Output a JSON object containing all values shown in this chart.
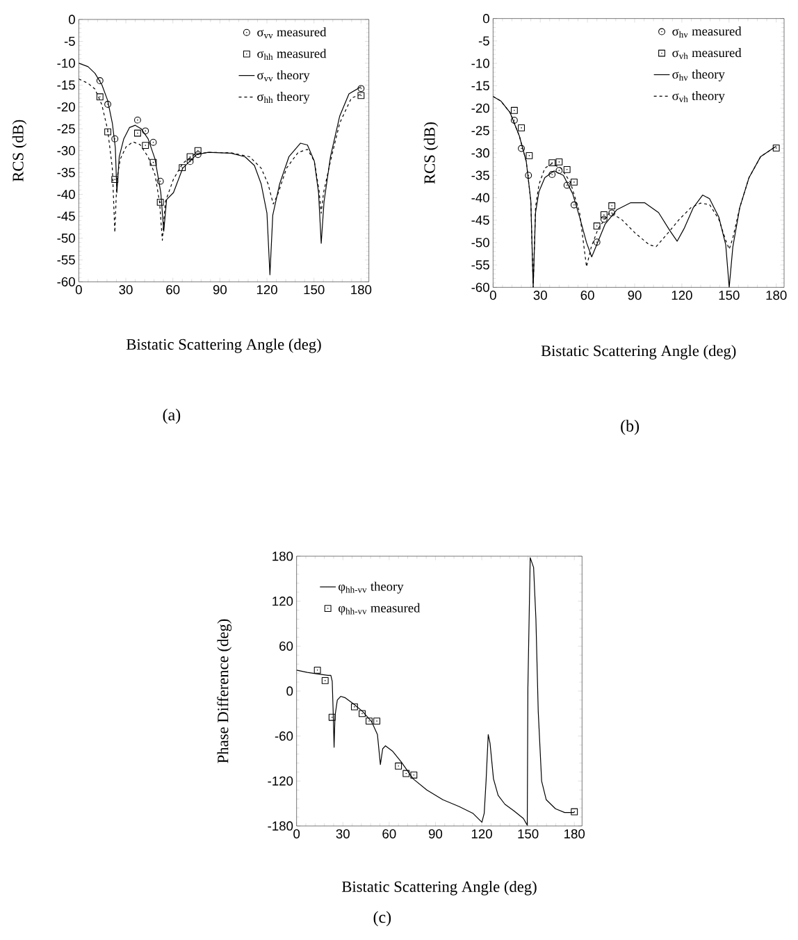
{
  "chart_data": [
    {
      "type": "line",
      "title": "(a)",
      "xlabel": "Bistatic Scattering Angle (deg)",
      "ylabel": "RCS  (dB)",
      "xlim": [
        0,
        185
      ],
      "ylim": [
        -60,
        0
      ],
      "xticks": [
        0,
        30,
        60,
        90,
        120,
        150,
        180
      ],
      "yticks": [
        0,
        -5,
        -10,
        -15,
        -20,
        -25,
        -30,
        -35,
        -40,
        -45,
        -50,
        -55,
        -60
      ],
      "legend": "top right",
      "series": [
        {
          "name": "σ$_{vv}$ measured",
          "type": "scatter",
          "marker": "circle",
          "color": "#000000",
          "x": [
            13.5,
            18.5,
            23,
            37.5,
            42.5,
            47.5,
            52,
            71,
            76,
            180
          ],
          "values": [
            -14.0,
            -19.4,
            -27.3,
            -23.0,
            -25.5,
            -28.1,
            -37.0,
            -32.5,
            -30.9,
            -15.8
          ]
        },
        {
          "name": "σ$_{hh}$ measured",
          "type": "scatter",
          "marker": "square",
          "color": "#000000",
          "x": [
            13.5,
            18.5,
            23,
            37.5,
            42.5,
            47.5,
            52,
            66,
            71,
            76,
            180
          ],
          "values": [
            -17.7,
            -25.7,
            -36.6,
            -26.0,
            -28.8,
            -32.7,
            -41.8,
            -33.9,
            -31.4,
            -30.0,
            -17.4
          ]
        },
        {
          "name": "σ$_{vv}$ theory",
          "line_style": "solid",
          "color": "#000000",
          "x": [
            0,
            5.9,
            10.3,
            14.7,
            18.4,
            21.4,
            23.3,
            24.3,
            25.8,
            28.7,
            32.4,
            36,
            39.8,
            44.2,
            48.6,
            52.3,
            54.2,
            56,
            60.4,
            66.3,
            75.1,
            82.5,
            97.2,
            106,
            112,
            116.3,
            120,
            121.9,
            123.7,
            128.1,
            134,
            141.4,
            145.8,
            150.2,
            152.9,
            154.6,
            156.4,
            160.5,
            166.4,
            172.3,
            180
          ],
          "values": [
            -10,
            -10.8,
            -12.3,
            -14.9,
            -18.5,
            -23.7,
            -29.3,
            -39.6,
            -31.4,
            -27.3,
            -24.7,
            -24.2,
            -25,
            -27.3,
            -31.9,
            -39.6,
            -48.4,
            -41.2,
            -39.6,
            -34,
            -30.9,
            -30.4,
            -30.6,
            -31.4,
            -33.4,
            -37.6,
            -44.3,
            -58.4,
            -44.8,
            -37.6,
            -31.4,
            -28.3,
            -28.7,
            -32.4,
            -39.6,
            -51.2,
            -41.7,
            -31.4,
            -22.1,
            -17,
            -15.4
          ]
        },
        {
          "name": "σ$_{hh}$ theory",
          "line_style": "dashed",
          "color": "#000000",
          "x": [
            0,
            5.9,
            10.3,
            14.7,
            18.4,
            21.4,
            23,
            24.3,
            26.5,
            30.2,
            34.6,
            39,
            44.2,
            48.6,
            51.5,
            53.3,
            55.2,
            60.4,
            66.3,
            73.6,
            82.5,
            97.2,
            109,
            116.3,
            120.7,
            124,
            126.7,
            132.5,
            139.9,
            145.8,
            150.2,
            153.2,
            154.6,
            156.1,
            160.5,
            166.4,
            173.8,
            180
          ],
          "values": [
            -13.6,
            -14.6,
            -15.9,
            -19.5,
            -25.2,
            -34,
            -48.7,
            -36.5,
            -31.9,
            -29.1,
            -28,
            -28.6,
            -31.4,
            -35.5,
            -41.7,
            -50.5,
            -41.7,
            -36.5,
            -32.9,
            -30.9,
            -30.4,
            -30.5,
            -31.4,
            -34,
            -37.6,
            -42.2,
            -40.2,
            -34,
            -30.4,
            -29.7,
            -32.4,
            -39.1,
            -44.3,
            -39.6,
            -32.4,
            -23.7,
            -18,
            -17.1
          ]
        }
      ]
    },
    {
      "type": "line",
      "title": "(b)",
      "xlabel": "Bistatic Scattering Angle (deg)",
      "ylabel": "RCS  (dB)",
      "xlim": [
        0,
        185
      ],
      "ylim": [
        -60,
        0
      ],
      "xticks": [
        0,
        30,
        60,
        90,
        120,
        150,
        180
      ],
      "yticks": [
        0,
        -5,
        -10,
        -15,
        -20,
        -25,
        -30,
        -35,
        -40,
        -45,
        -50,
        -55,
        -60
      ],
      "legend": "top right",
      "series": [
        {
          "name": "σ$_{hv}$ measured",
          "type": "scatter",
          "marker": "circle",
          "color": "#000000",
          "x": [
            13.5,
            18,
            22.5,
            37.5,
            42,
            47,
            51.5,
            66,
            70.5,
            75.5
          ],
          "values": [
            -22.7,
            -29.0,
            -35.0,
            -34.8,
            -33.9,
            -37.2,
            -41.6,
            -49.9,
            -44.8,
            -43.4
          ]
        },
        {
          "name": "σ$_{vh}$ measured",
          "type": "scatter",
          "marker": "square",
          "color": "#000000",
          "x": [
            13.5,
            18,
            23,
            37.5,
            42,
            47,
            51.5,
            66,
            70.5,
            75.5,
            180
          ],
          "values": [
            -20.5,
            -24.4,
            -30.6,
            -32.2,
            -32.0,
            -33.7,
            -36.5,
            -46.3,
            -43.8,
            -41.8,
            -28.9
          ]
        },
        {
          "name": "σ$_{hv}$ theory",
          "line_style": "solid",
          "color": "#000000",
          "x": [
            0,
            4.9,
            10.8,
            16.7,
            21.1,
            24,
            25.5,
            27,
            29.2,
            32.9,
            38.8,
            44.7,
            50.6,
            55,
            59.4,
            62.7,
            65.3,
            71.2,
            78.6,
            87.5,
            96.3,
            105.2,
            112.5,
            117,
            121.4,
            127.3,
            133.2,
            137.6,
            143.5,
            147.9,
            150.1,
            152.4,
            156.8,
            162.7,
            170.1,
            180
          ],
          "values": [
            -17.4,
            -18.4,
            -21,
            -26.2,
            -31.9,
            -40.7,
            -60,
            -43.3,
            -38.6,
            -35.5,
            -34,
            -35,
            -39.1,
            -44.3,
            -50,
            -53.2,
            -51,
            -45.9,
            -42.7,
            -41.1,
            -41.1,
            -43.3,
            -47.4,
            -49.7,
            -46.9,
            -42.2,
            -39.4,
            -40.2,
            -44.3,
            -50.5,
            -60,
            -51,
            -42.2,
            -35.5,
            -30.8,
            -28.5
          ]
        },
        {
          "name": "σ$_{vh}$ theory",
          "line_style": "dashed",
          "color": "#000000",
          "x": [
            0,
            4.9,
            10.8,
            16.7,
            21.1,
            24,
            25.5,
            27,
            29.2,
            32.9,
            37.3,
            43.2,
            49.1,
            55,
            59.4,
            62.4,
            66.8,
            74.2,
            81.6,
            90.4,
            99.3,
            103.7,
            111.1,
            118.4,
            125.8,
            131.7,
            137.6,
            143.5,
            147.9,
            150.1,
            152.4,
            156.8,
            162.7,
            170.1,
            180
          ],
          "values": [
            -17.4,
            -18.4,
            -21,
            -26.2,
            -31.9,
            -40.7,
            -60,
            -42,
            -37,
            -33.4,
            -32.4,
            -33.4,
            -36.5,
            -43.3,
            -55.4,
            -51,
            -46.9,
            -43.3,
            -44.8,
            -47.9,
            -50.5,
            -50.9,
            -47.9,
            -44.8,
            -42.2,
            -41.2,
            -41.5,
            -44.8,
            -49.5,
            -51.5,
            -49,
            -42.2,
            -35.5,
            -30.8,
            -28.5
          ]
        }
      ]
    },
    {
      "type": "line",
      "title": "(c)",
      "xlabel": "Bistatic Scattering Angle (deg)",
      "ylabel": "Phase Difference  (deg)",
      "xlim": [
        0,
        185
      ],
      "ylim": [
        -180,
        180
      ],
      "xticks": [
        0,
        30,
        60,
        90,
        120,
        150,
        180
      ],
      "yticks": [
        -180,
        -120,
        -60,
        0,
        60,
        120,
        180
      ],
      "legend": "top left",
      "series": [
        {
          "name": "φ$_{hh-vv}$ theory",
          "line_style": "solid",
          "color": "#000000",
          "x": [
            0,
            7,
            13,
            20.4,
            22.2,
            23.1,
            23.7,
            24.3,
            24.9,
            26.4,
            28.6,
            31.6,
            36.8,
            42.7,
            48.7,
            52.4,
            54.3,
            55.8,
            57.6,
            62.1,
            68,
            75.5,
            84.4,
            94.8,
            105.3,
            114.2,
            120.1,
            121.6,
            122.8,
            124.2,
            125.4,
            127.6,
            130.6,
            135,
            141,
            147,
            149.5,
            149.9,
            151.4,
            153.6,
            155.1,
            156.6,
            158.8,
            161.8,
            167.8,
            173.7,
            180
          ],
          "values": [
            28,
            25,
            23,
            21,
            21,
            13,
            -27,
            -75,
            -33,
            -12,
            -7,
            -9,
            -17,
            -27,
            -41,
            -58,
            -98,
            -77,
            -73,
            -80,
            -95,
            -117,
            -132,
            -145,
            -154,
            -163,
            -175,
            -163,
            -120,
            -58,
            -70,
            -117,
            -139,
            -151,
            -160,
            -170,
            -179,
            4,
            178,
            165,
            96,
            -27,
            -120,
            -145,
            -157,
            -162,
            -162
          ]
        },
        {
          "name": "φ$_{hh-vv}$ measured",
          "type": "scatter",
          "marker": "square",
          "color": "#000000",
          "x": [
            13.5,
            18.5,
            23,
            37.5,
            42.5,
            47,
            52,
            66,
            71,
            76,
            180
          ],
          "values": [
            28,
            14,
            -35,
            -21,
            -30,
            -40,
            -40,
            -100,
            -110,
            -112,
            -161
          ]
        }
      ]
    }
  ]
}
